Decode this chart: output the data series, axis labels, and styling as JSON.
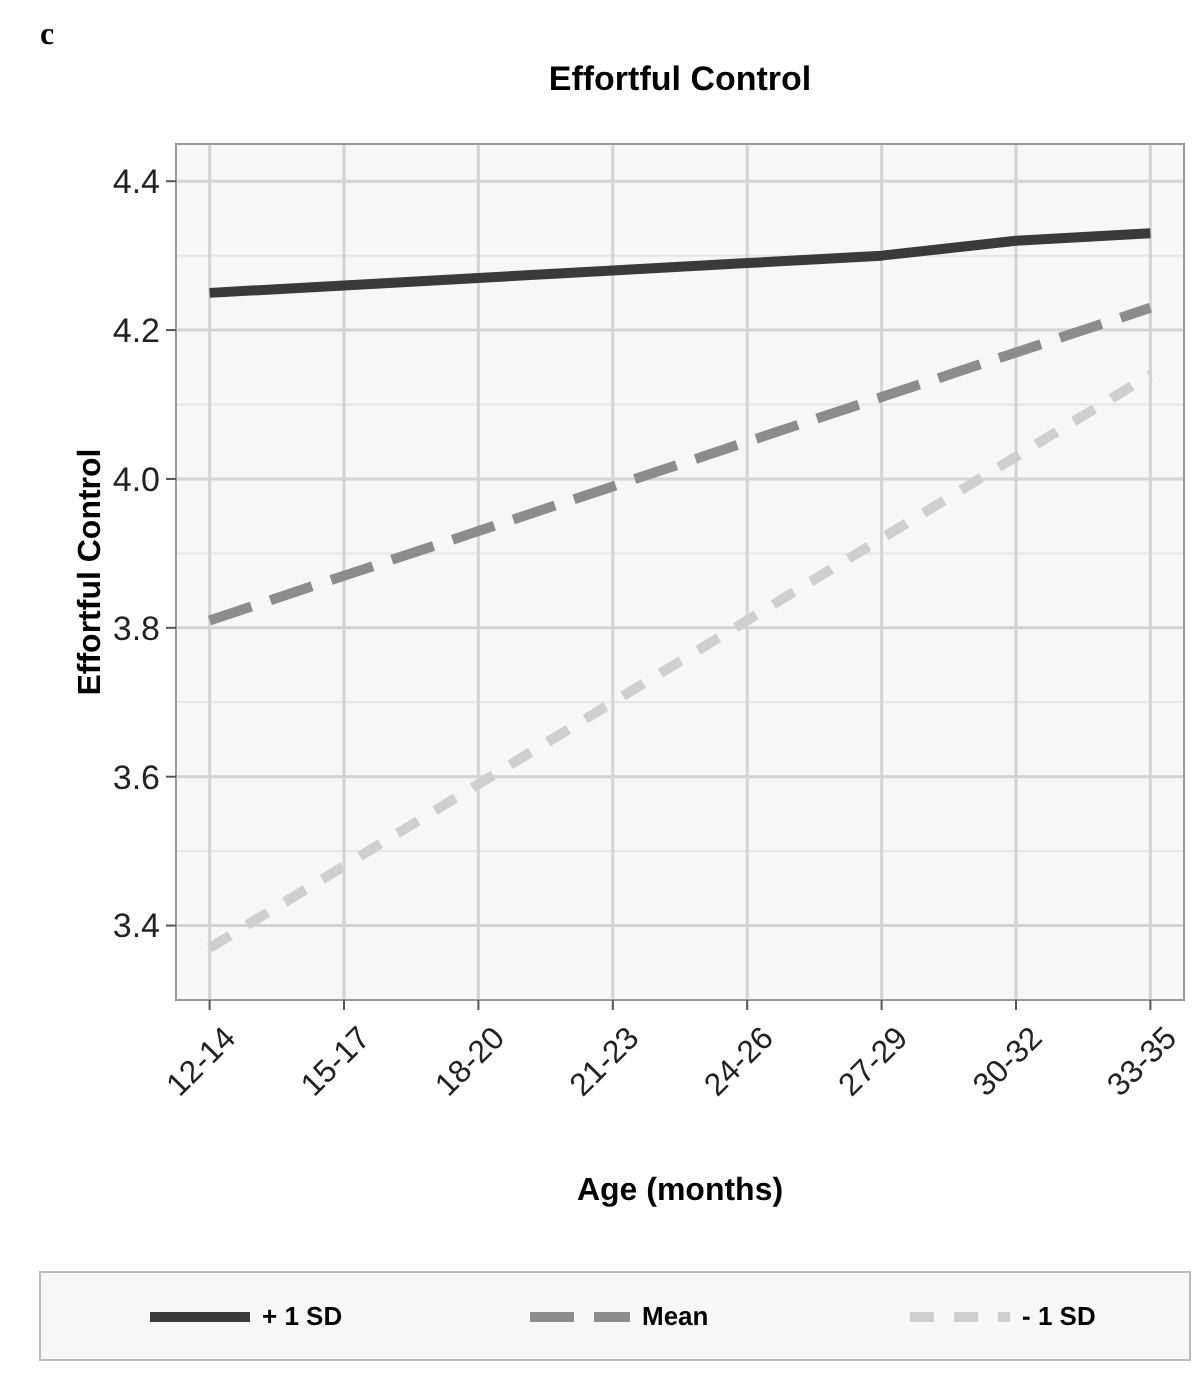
{
  "chart_data": {
    "type": "line",
    "title": "Effortful Control",
    "xlabel": "Age (months)",
    "ylabel": "Effortful Control",
    "annotations": [
      "c"
    ],
    "categories": [
      "12-14",
      "15-17",
      "18-20",
      "21-23",
      "24-26",
      "27-29",
      "30-32",
      "33-35"
    ],
    "ylim": [
      3.3,
      4.45
    ],
    "yticks": [
      {
        "value": 3.4,
        "label": "3.4"
      },
      {
        "value": 3.6,
        "label": "3.6"
      },
      {
        "value": 3.8,
        "label": "3.8"
      },
      {
        "value": 4,
        "label": "4.0"
      },
      {
        "value": 4.2,
        "label": "4.2"
      },
      {
        "value": 4.4,
        "label": "4.4"
      }
    ],
    "grid": true,
    "legend": "bottom",
    "marker": "none",
    "series": [
      {
        "name": "+ 1 SD",
        "color": "#3a3a3a",
        "line_style": "solid",
        "values": [
          4.25,
          4.26,
          4.27,
          4.28,
          4.29,
          4.3,
          4.32,
          4.33
        ]
      },
      {
        "name": "Mean",
        "color": "#8c8c8c",
        "line_style": "dashed",
        "values": [
          3.81,
          3.87,
          3.93,
          3.99,
          4.05,
          4.11,
          4.17,
          4.23
        ]
      },
      {
        "name": "- 1 SD",
        "color": "#cfcfcf",
        "line_style": "dotted",
        "values": [
          3.37,
          3.48,
          3.59,
          3.7,
          3.81,
          3.92,
          4.03,
          4.14
        ]
      }
    ]
  }
}
